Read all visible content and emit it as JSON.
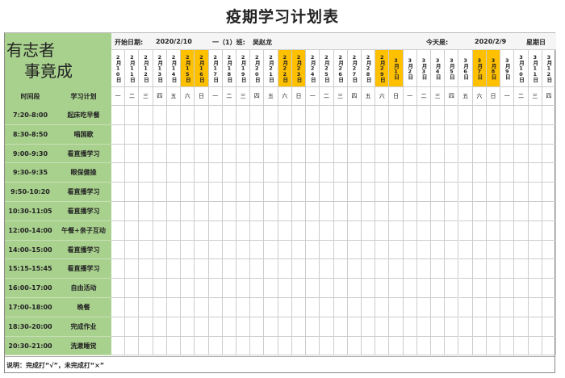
{
  "title": "疫期学习计划表",
  "motto": [
    "有志者",
    "事竟成"
  ],
  "info": {
    "start_label": "开始日期:",
    "start_date": "2020/2/10",
    "class_label": "一（1）班:",
    "student": "吴赵龙",
    "today_label": "今天是:",
    "today": "2020/2/9",
    "weekday": "星期日"
  },
  "headers": {
    "time": "时间段",
    "plan": "学习计划"
  },
  "dates": [
    "2月10日",
    "2月11日",
    "2月12日",
    "2月13日",
    "2月14日",
    "2月15日",
    "2月16日",
    "2月17日",
    "2月18日",
    "2月19日",
    "2月20日",
    "2月21日",
    "2月22日",
    "2月23日",
    "2月24日",
    "2月25日",
    "2月26日",
    "2月27日",
    "2月28日",
    "2月29日",
    "3月1日",
    "3月2日",
    "3月3日",
    "3月4日",
    "3月5日",
    "3月6日",
    "3月7日",
    "3月8日",
    "3月9日",
    "3月10日",
    "3月11日",
    "3月12日"
  ],
  "weekdays": [
    "一",
    "二",
    "三",
    "四",
    "五",
    "六",
    "日",
    "一",
    "二",
    "三",
    "四",
    "五",
    "六",
    "日",
    "一",
    "二",
    "三",
    "四",
    "五",
    "六",
    "日",
    "一",
    "二",
    "三",
    "四",
    "五",
    "六",
    "日",
    "一",
    "二",
    "三",
    "四"
  ],
  "schedule": [
    {
      "time": "7:20-8:00",
      "plan": "起床吃早餐"
    },
    {
      "time": "8:30-8:50",
      "plan": "唱国歌"
    },
    {
      "time": "9:00-9:30",
      "plan": "看直播学习"
    },
    {
      "time": "9:30-9:35",
      "plan": "眼保健操"
    },
    {
      "time": "9:50-10:20",
      "plan": "看直播学习"
    },
    {
      "time": "10:30-11:05",
      "plan": "看直播学习"
    },
    {
      "time": "12:00-14:00",
      "plan": "午餐+亲子互动"
    },
    {
      "time": "14:00-15:00",
      "plan": "看直播学习"
    },
    {
      "time": "15:15-15:45",
      "plan": "看直播学习"
    },
    {
      "time": "16:00-17:00",
      "plan": "自由活动"
    },
    {
      "time": "17:00-18:00",
      "plan": "晚餐"
    },
    {
      "time": "18:30-20:00",
      "plan": "完成作业"
    },
    {
      "time": "20:30-21:00",
      "plan": "洗漱睡觉"
    }
  ],
  "note": "说明：完成打“√”，未完成打“×”",
  "colors": {
    "green": "#a9d18e",
    "weekend": "#ffc000"
  }
}
